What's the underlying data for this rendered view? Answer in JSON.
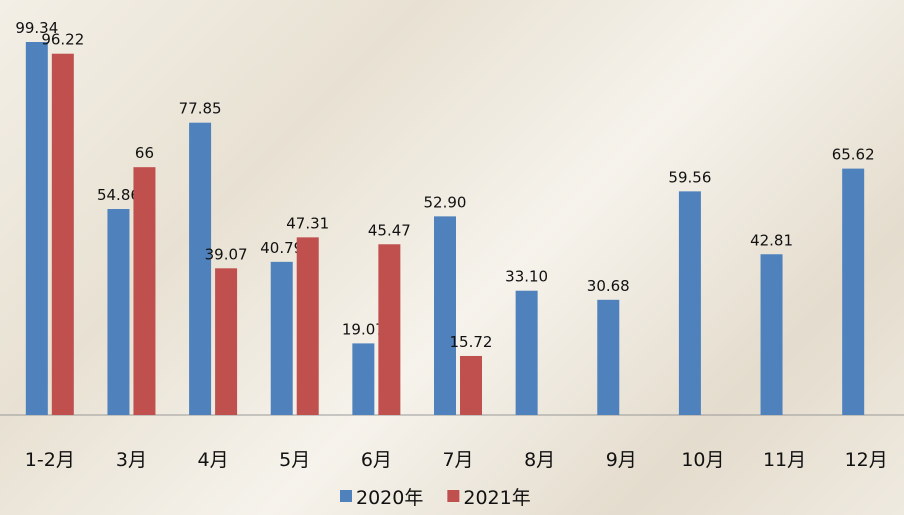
{
  "chart_data": {
    "type": "bar",
    "categories": [
      "1-2月",
      "3月",
      "4月",
      "5月",
      "6月",
      "7月",
      "8月",
      "9月",
      "10月",
      "11月",
      "12月"
    ],
    "series": [
      {
        "name": "2020年",
        "color": "#4f81bd",
        "values": [
          99.34,
          54.86,
          77.85,
          40.79,
          19.07,
          52.9,
          33.1,
          30.68,
          59.56,
          42.81,
          65.62
        ],
        "value_labels": [
          "99.34",
          "54.86",
          "77.85",
          "40.79",
          "19.07",
          "52.90",
          "33.10",
          "30.68",
          "59.56",
          "42.81",
          "65.62"
        ]
      },
      {
        "name": "2021年",
        "color": "#c0504d",
        "values": [
          96.22,
          66,
          39.07,
          47.31,
          45.47,
          15.72,
          null,
          null,
          null,
          null,
          null
        ],
        "value_labels": [
          "96.22",
          "66",
          "39.07",
          "47.31",
          "45.47",
          "15.72",
          null,
          null,
          null,
          null,
          null
        ]
      }
    ],
    "legend": "bottom"
  }
}
